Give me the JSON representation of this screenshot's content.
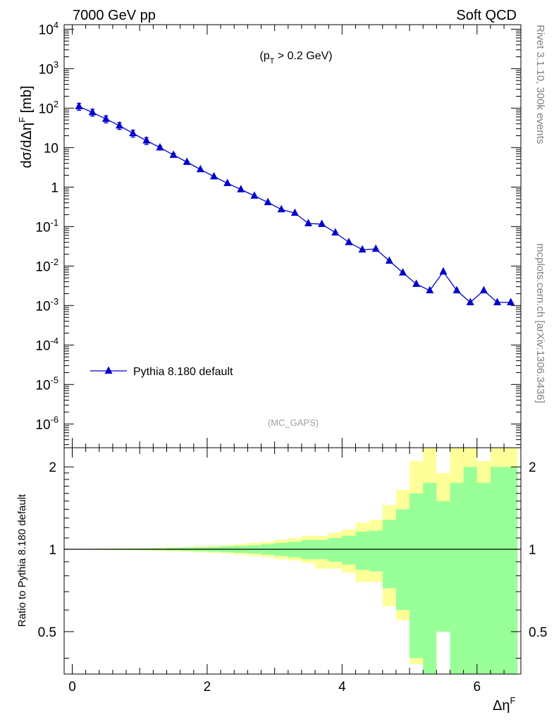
{
  "header": {
    "left_label": "7000 GeV pp",
    "right_label": "Soft QCD"
  },
  "side_labels": {
    "rivet": "Rivet 3.1.10,  300k events",
    "mcplots": "mcplots.cern.ch [arXiv:1306.3436]"
  },
  "colors": {
    "series": "#0000cc",
    "band_outer": "#ffff99",
    "band_inner": "#99ff99"
  },
  "chart_data": [
    {
      "type": "line",
      "annotation": "(p_T > 0.2 GeV)",
      "watermark": "(MC_GAPS)",
      "ylabel": "dσ/dΔη^F [mb]",
      "yscale": "log",
      "xlim": [
        -0.12,
        6.65
      ],
      "ylim": [
        2.5e-07,
        13000
      ],
      "ytick_labels": [
        "10^-6",
        "10^-5",
        "10^-4",
        "10^-3",
        "10^-2",
        "10^-1",
        "1",
        "10",
        "10^2",
        "10^3",
        "10^4"
      ],
      "legend": {
        "position": "lower-left"
      },
      "series": [
        {
          "name": "Pythia 8.180 default",
          "x": [
            0.1,
            0.3,
            0.5,
            0.7,
            0.9,
            1.1,
            1.3,
            1.5,
            1.7,
            1.9,
            2.1,
            2.3,
            2.5,
            2.7,
            2.9,
            3.1,
            3.3,
            3.5,
            3.7,
            3.9,
            4.1,
            4.3,
            4.5,
            4.7,
            4.9,
            5.1,
            5.3,
            5.5,
            5.7,
            5.9,
            6.1,
            6.3,
            6.5
          ],
          "y": [
            110,
            78,
            53,
            36,
            23,
            15,
            10,
            6.5,
            4.3,
            2.8,
            1.85,
            1.25,
            0.87,
            0.6,
            0.41,
            0.27,
            0.22,
            0.12,
            0.115,
            0.07,
            0.04,
            0.026,
            0.027,
            0.0135,
            0.0068,
            0.0035,
            0.0024,
            0.0072,
            0.0024,
            0.0012,
            0.0024,
            0.0012,
            0.0012
          ],
          "yerr_low": [
            0.2,
            0.2,
            0.2,
            0.2,
            0.2,
            0.2,
            0.1,
            0.1,
            0.05,
            0.04,
            0.03,
            0.02,
            0.015,
            0.012,
            0.01,
            0.008,
            0.007,
            0.006,
            0.005,
            0.005,
            0.004,
            0.006,
            0.006,
            0.0035,
            0.0025,
            0.0017,
            0.0018,
            0.0034,
            0.0018,
            0.0012,
            0.0018,
            0.0012,
            0.0012
          ],
          "yerr_high": [
            0.2,
            0.2,
            0.2,
            0.2,
            0.2,
            0.2,
            0.1,
            0.1,
            0.05,
            0.04,
            0.03,
            0.02,
            0.015,
            0.012,
            0.01,
            0.008,
            0.007,
            0.006,
            0.005,
            0.005,
            0.004,
            0.006,
            0.006,
            0.0035,
            0.0025,
            0.0017,
            0.0018,
            0.0034,
            0.0018,
            0.0017,
            0.0018,
            0.0012,
            0.0012
          ]
        }
      ]
    },
    {
      "type": "area",
      "xlabel": "Δη^F",
      "ylabel": "Ratio to Pythia 8.180 default",
      "yscale": "log",
      "xlim": [
        -0.12,
        6.65
      ],
      "ylim": [
        0.35,
        2.35
      ],
      "xtick_labels": [
        "0",
        "2",
        "4",
        "6"
      ],
      "ytick_labels": [
        "0.5",
        "1",
        "2"
      ],
      "bin_edges": [
        0.0,
        0.2,
        0.4,
        0.6,
        0.8,
        1.0,
        1.2,
        1.4,
        1.6,
        1.8,
        2.0,
        2.2,
        2.4,
        2.6,
        2.8,
        3.0,
        3.2,
        3.4,
        3.6,
        3.8,
        4.0,
        4.2,
        4.4,
        4.6,
        4.8,
        5.0,
        5.2,
        5.4,
        5.6,
        5.8,
        6.0,
        6.2,
        6.4,
        6.6
      ],
      "outer_band_high": [
        1.003,
        1.004,
        1.005,
        1.006,
        1.008,
        1.01,
        1.013,
        1.016,
        1.02,
        1.025,
        1.03,
        1.035,
        1.045,
        1.055,
        1.065,
        1.085,
        1.1,
        1.12,
        1.12,
        1.15,
        1.18,
        1.25,
        1.28,
        1.45,
        1.65,
        2.1,
        2.4,
        1.9,
        2.4,
        2.4,
        2.1,
        2.4,
        2.4
      ],
      "outer_band_low": [
        0.997,
        0.996,
        0.995,
        0.994,
        0.992,
        0.99,
        0.987,
        0.984,
        0.98,
        0.976,
        0.97,
        0.965,
        0.955,
        0.945,
        0.935,
        0.92,
        0.91,
        0.89,
        0.85,
        0.85,
        0.82,
        0.76,
        0.76,
        0.62,
        0.55,
        0.38,
        0.35,
        0.52,
        0.35,
        0.35,
        0.35,
        0.35,
        0.35
      ],
      "inner_band_high": [
        1.002,
        1.003,
        1.004,
        1.005,
        1.006,
        1.007,
        1.009,
        1.011,
        1.014,
        1.017,
        1.02,
        1.025,
        1.03,
        1.035,
        1.045,
        1.055,
        1.065,
        1.08,
        1.08,
        1.1,
        1.12,
        1.16,
        1.17,
        1.28,
        1.4,
        1.6,
        1.75,
        1.5,
        1.75,
        2.0,
        1.75,
        2.0,
        2.0
      ],
      "inner_band_low": [
        0.998,
        0.997,
        0.996,
        0.995,
        0.994,
        0.993,
        0.991,
        0.989,
        0.986,
        0.983,
        0.98,
        0.975,
        0.97,
        0.965,
        0.955,
        0.945,
        0.935,
        0.92,
        0.92,
        0.9,
        0.88,
        0.84,
        0.83,
        0.72,
        0.6,
        0.4,
        0.35,
        0.5,
        0.35,
        0.35,
        0.35,
        0.35,
        0.35
      ]
    }
  ]
}
